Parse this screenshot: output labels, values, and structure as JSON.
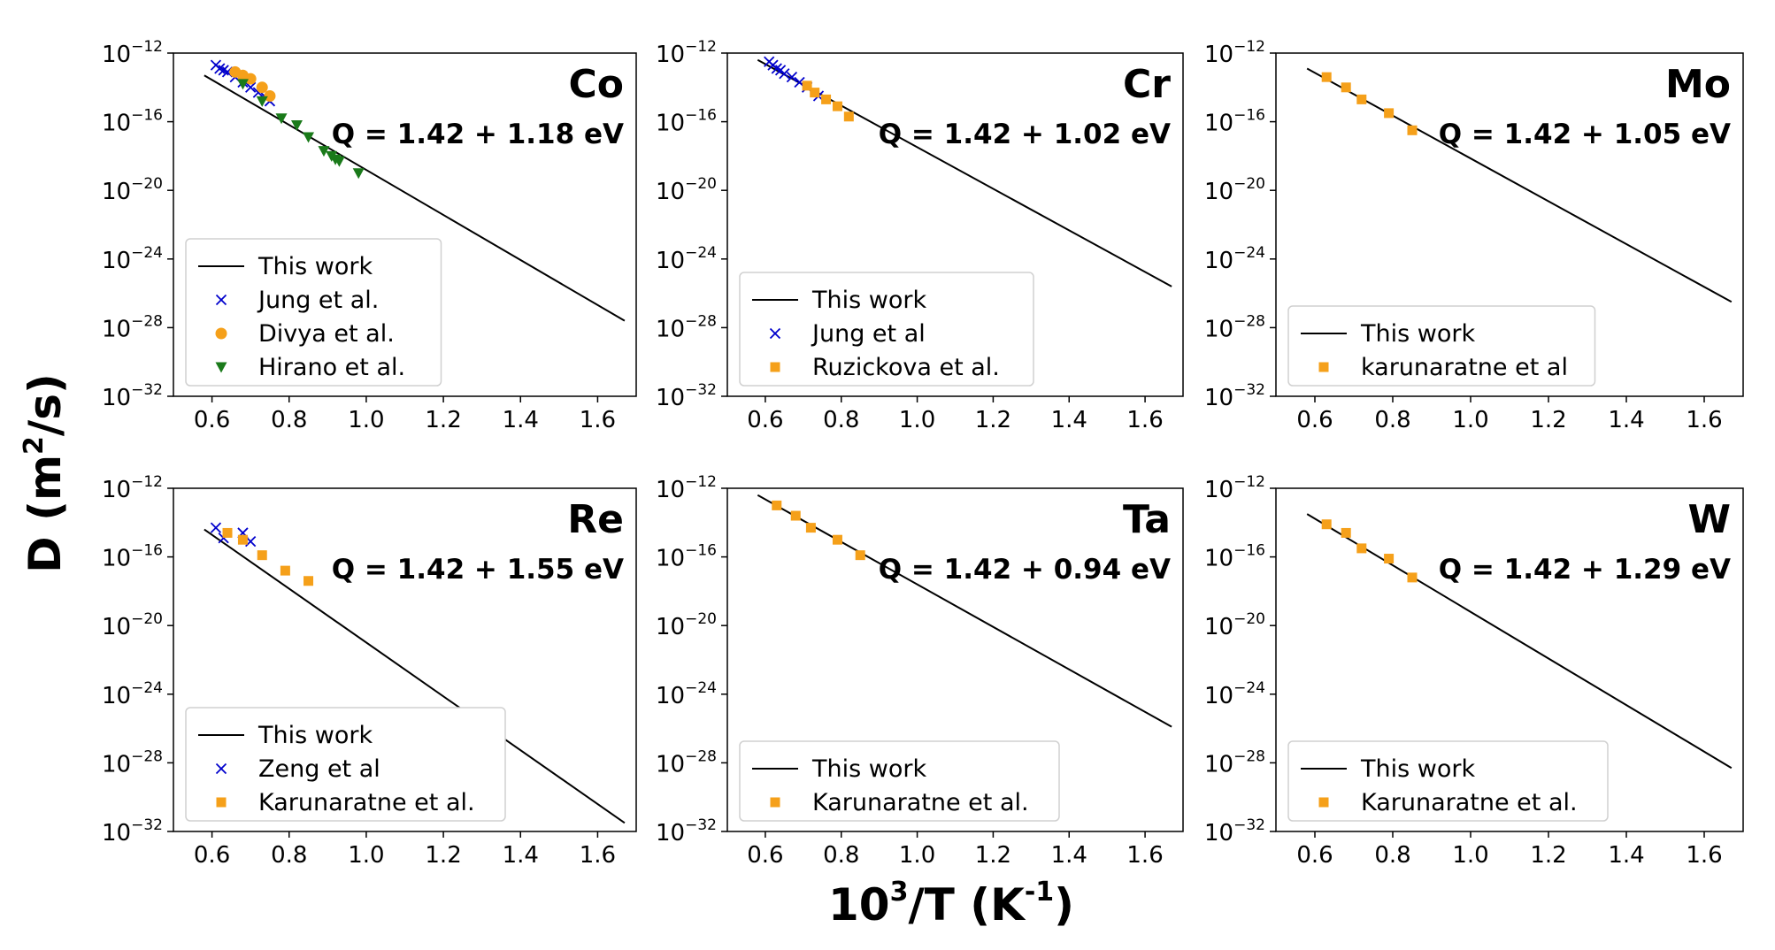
{
  "figure": {
    "ylabel": "D (m²/s)",
    "ylabel_parts": {
      "base": "D (m",
      "sup": "2",
      "tail": "/s)"
    },
    "xlabel": "10³/T (K⁻¹)",
    "xlabel_parts": {
      "base": "10",
      "sup": "3",
      "mid": "/T (K",
      "sup2": "-1",
      "tail": ")"
    }
  },
  "colors": {
    "line": "#000000",
    "blue": "#0000cc",
    "orange": "#f5a01a",
    "green": "#1a7a1a"
  },
  "chart_data": [
    {
      "type": "scatter",
      "element": "Co",
      "q_label": "Q = 1.42 + 1.18 eV",
      "xlim": [
        0.5,
        1.7
      ],
      "ylim_log10": [
        -32,
        -12
      ],
      "xticks": [
        "0.6",
        "0.8",
        "1.0",
        "1.2",
        "1.4",
        "1.6"
      ],
      "yticks": [
        "-12",
        "-16",
        "-20",
        "-24",
        "-28",
        "-32"
      ],
      "legend_position": "lower-left",
      "line": {
        "name": "This work",
        "x": [
          0.58,
          1.67
        ],
        "log10_y": [
          -13.3,
          -27.6
        ]
      },
      "series": [
        {
          "name": "Jung et al.",
          "marker": "x",
          "color": "blue",
          "x": [
            0.61,
            0.62,
            0.63,
            0.64,
            0.66,
            0.68,
            0.7,
            0.72,
            0.74,
            0.75
          ],
          "log10_y": [
            -12.7,
            -12.9,
            -13.0,
            -13.1,
            -13.4,
            -13.7,
            -14.0,
            -14.3,
            -14.6,
            -14.8
          ]
        },
        {
          "name": "Divya et al.",
          "marker": "circle",
          "color": "orange",
          "x": [
            0.66,
            0.68,
            0.7,
            0.73,
            0.75
          ],
          "log10_y": [
            -13.1,
            -13.3,
            -13.5,
            -14.0,
            -14.5
          ]
        },
        {
          "name": "Hirano et al.",
          "marker": "triangle-down",
          "color": "green",
          "x": [
            0.68,
            0.73,
            0.78,
            0.82,
            0.85,
            0.89,
            0.91,
            0.92,
            0.93,
            0.98
          ],
          "log10_y": [
            -13.8,
            -14.8,
            -15.8,
            -16.2,
            -16.9,
            -17.7,
            -18.0,
            -18.2,
            -18.3,
            -19.0
          ]
        }
      ]
    },
    {
      "type": "scatter",
      "element": "Cr",
      "q_label": "Q = 1.42 + 1.02 eV",
      "xlim": [
        0.5,
        1.7
      ],
      "ylim_log10": [
        -32,
        -12
      ],
      "xticks": [
        "0.6",
        "0.8",
        "1.0",
        "1.2",
        "1.4",
        "1.6"
      ],
      "yticks": [
        "-12",
        "-16",
        "-20",
        "-24",
        "-28",
        "-32"
      ],
      "legend_position": "lower-left",
      "line": {
        "name": "This work",
        "x": [
          0.58,
          1.67
        ],
        "log10_y": [
          -12.4,
          -25.6
        ]
      },
      "series": [
        {
          "name": "Jung et al",
          "marker": "x",
          "color": "blue",
          "x": [
            0.61,
            0.62,
            0.63,
            0.64,
            0.65,
            0.67,
            0.69,
            0.71,
            0.74
          ],
          "log10_y": [
            -12.5,
            -12.7,
            -12.9,
            -13.0,
            -13.2,
            -13.4,
            -13.7,
            -14.0,
            -14.5
          ]
        },
        {
          "name": "Ruzickova et al.",
          "marker": "square",
          "color": "orange",
          "x": [
            0.71,
            0.73,
            0.76,
            0.79,
            0.82
          ],
          "log10_y": [
            -13.9,
            -14.3,
            -14.7,
            -15.1,
            -15.7
          ]
        }
      ]
    },
    {
      "type": "scatter",
      "element": "Mo",
      "q_label": "Q = 1.42 + 1.05 eV",
      "xlim": [
        0.5,
        1.7
      ],
      "ylim_log10": [
        -32,
        -12
      ],
      "xticks": [
        "0.6",
        "0.8",
        "1.0",
        "1.2",
        "1.4",
        "1.6"
      ],
      "yticks": [
        "-12",
        "-16",
        "-20",
        "-24",
        "-28",
        "-32"
      ],
      "legend_position": "lower-left",
      "line": {
        "name": "This work",
        "x": [
          0.58,
          1.67
        ],
        "log10_y": [
          -12.9,
          -26.5
        ]
      },
      "series": [
        {
          "name": "karunaratne et al",
          "marker": "square",
          "color": "orange",
          "x": [
            0.63,
            0.68,
            0.72,
            0.79,
            0.85
          ],
          "log10_y": [
            -13.4,
            -14.0,
            -14.7,
            -15.5,
            -16.5
          ]
        }
      ]
    },
    {
      "type": "scatter",
      "element": "Re",
      "q_label": "Q = 1.42 + 1.55 eV",
      "xlim": [
        0.5,
        1.7
      ],
      "ylim_log10": [
        -32,
        -12
      ],
      "xticks": [
        "0.6",
        "0.8",
        "1.0",
        "1.2",
        "1.4",
        "1.6"
      ],
      "yticks": [
        "-12",
        "-16",
        "-20",
        "-24",
        "-28",
        "-32"
      ],
      "legend_position": "lower-left",
      "line": {
        "name": "This work",
        "x": [
          0.58,
          1.67
        ],
        "log10_y": [
          -14.4,
          -31.5
        ]
      },
      "series": [
        {
          "name": "Zeng et al",
          "marker": "x",
          "color": "blue",
          "x": [
            0.61,
            0.63,
            0.68,
            0.7
          ],
          "log10_y": [
            -14.3,
            -14.9,
            -14.6,
            -15.1
          ]
        },
        {
          "name": "Karunaratne et al.",
          "marker": "square",
          "color": "orange",
          "x": [
            0.64,
            0.68,
            0.73,
            0.79,
            0.85
          ],
          "log10_y": [
            -14.6,
            -15.0,
            -15.9,
            -16.8,
            -17.4
          ]
        }
      ]
    },
    {
      "type": "scatter",
      "element": "Ta",
      "q_label": "Q = 1.42 + 0.94 eV",
      "xlim": [
        0.5,
        1.7
      ],
      "ylim_log10": [
        -32,
        -12
      ],
      "xticks": [
        "0.6",
        "0.8",
        "1.0",
        "1.2",
        "1.4",
        "1.6"
      ],
      "yticks": [
        "-12",
        "-16",
        "-20",
        "-24",
        "-28",
        "-32"
      ],
      "legend_position": "lower-left",
      "line": {
        "name": "This work",
        "x": [
          0.58,
          1.67
        ],
        "log10_y": [
          -12.4,
          -25.9
        ]
      },
      "series": [
        {
          "name": "Karunaratne et al.",
          "marker": "square",
          "color": "orange",
          "x": [
            0.63,
            0.68,
            0.72,
            0.79,
            0.85
          ],
          "log10_y": [
            -13.0,
            -13.6,
            -14.3,
            -15.0,
            -15.9
          ]
        }
      ]
    },
    {
      "type": "scatter",
      "element": "W",
      "q_label": "Q = 1.42 + 1.29 eV",
      "xlim": [
        0.5,
        1.7
      ],
      "ylim_log10": [
        -32,
        -12
      ],
      "xticks": [
        "0.6",
        "0.8",
        "1.0",
        "1.2",
        "1.4",
        "1.6"
      ],
      "yticks": [
        "-12",
        "-16",
        "-20",
        "-24",
        "-28",
        "-32"
      ],
      "legend_position": "lower-left",
      "line": {
        "name": "This work",
        "x": [
          0.58,
          1.67
        ],
        "log10_y": [
          -13.5,
          -28.3
        ]
      },
      "series": [
        {
          "name": "Karunaratne et al.",
          "marker": "square",
          "color": "orange",
          "x": [
            0.63,
            0.68,
            0.72,
            0.79,
            0.85
          ],
          "log10_y": [
            -14.1,
            -14.6,
            -15.5,
            -16.1,
            -17.2
          ]
        }
      ]
    }
  ]
}
